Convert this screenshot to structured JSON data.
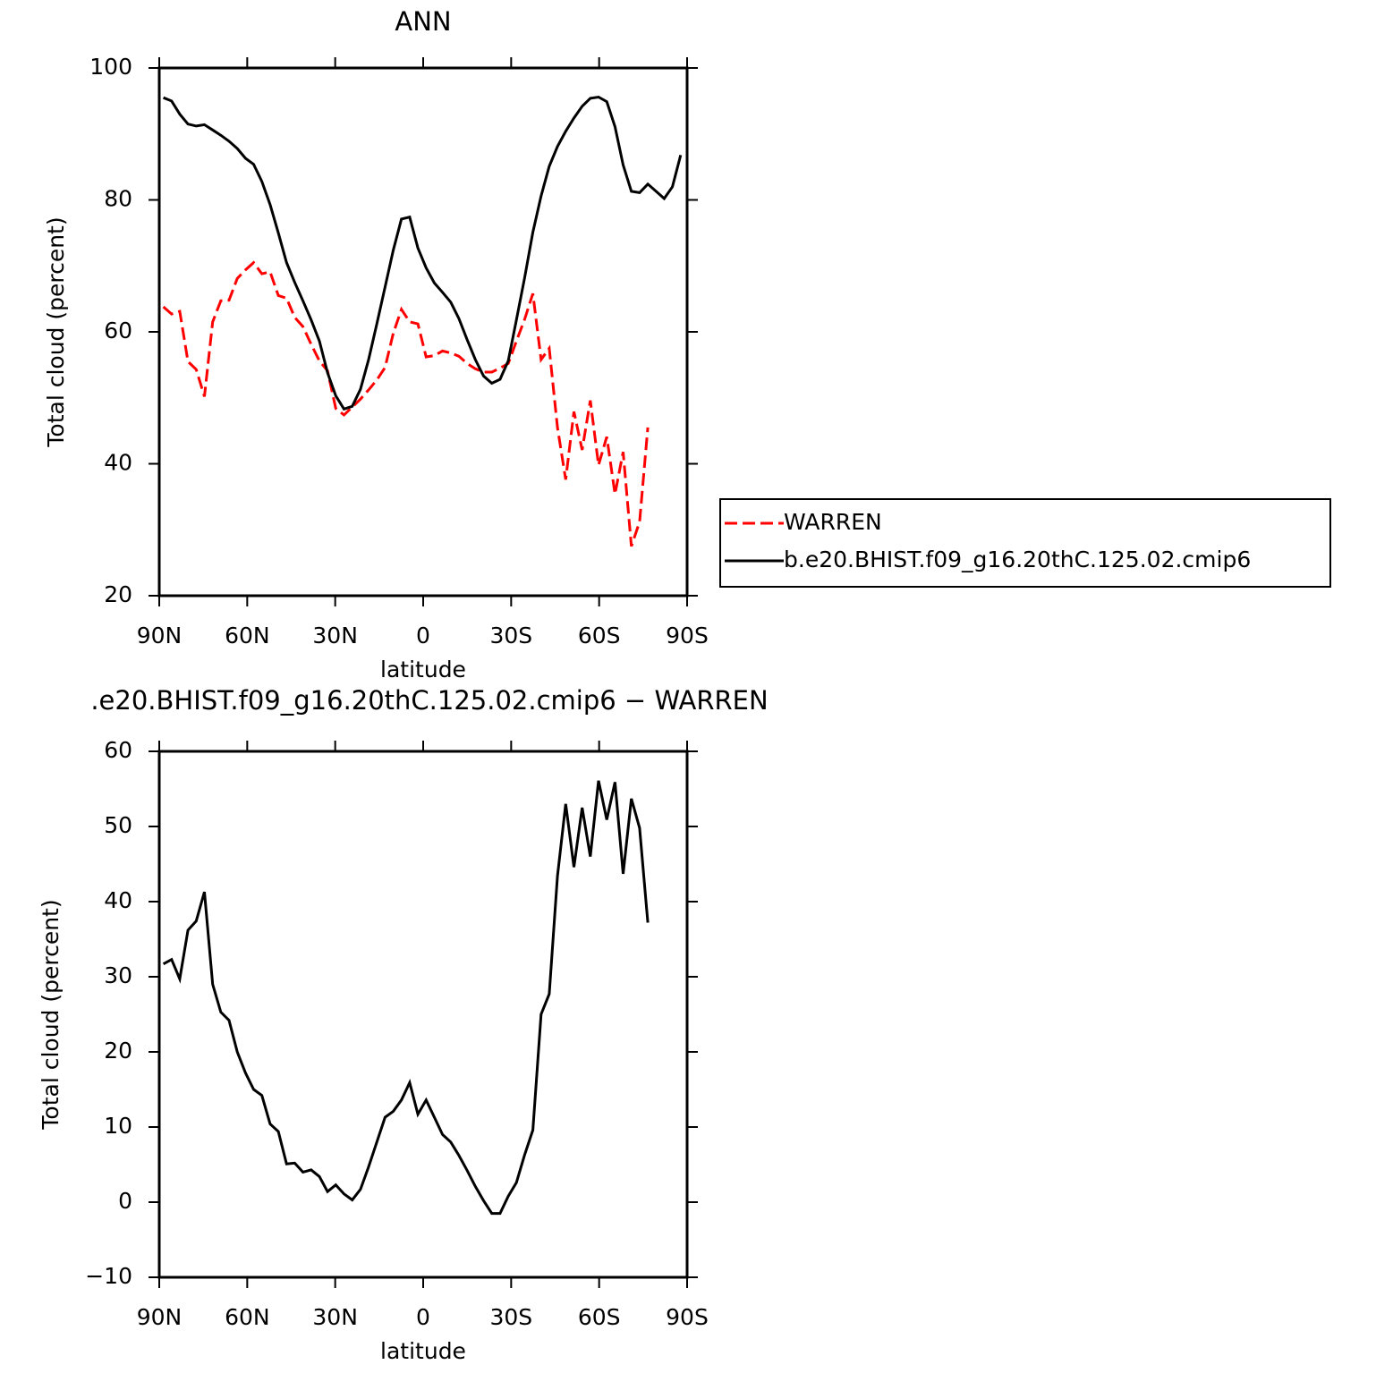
{
  "chart_data": [
    {
      "type": "line",
      "title": "ANN",
      "xlabel": "latitude",
      "ylabel": "Total cloud (percent)",
      "x": [
        88.6,
        85.8,
        83.0,
        80.2,
        77.4,
        74.6,
        71.8,
        69.0,
        66.2,
        63.4,
        60.6,
        57.8,
        55.0,
        52.2,
        49.4,
        46.6,
        43.8,
        41.0,
        38.2,
        35.4,
        32.6,
        29.8,
        27.0,
        24.2,
        21.4,
        18.6,
        15.8,
        13.0,
        10.2,
        7.4,
        4.6,
        1.8,
        -1.0,
        -3.8,
        -6.6,
        -9.4,
        -12.2,
        -15.0,
        -17.8,
        -20.6,
        -23.4,
        -26.2,
        -29.0,
        -31.8,
        -34.6,
        -37.4,
        -40.2,
        -43.0,
        -45.8,
        -48.6,
        -51.4,
        -54.2,
        -57.0,
        -59.8,
        -62.6,
        -65.4,
        -68.2,
        -71.0,
        -73.8,
        -76.6,
        -79.4,
        -82.2,
        -85.0,
        -87.8
      ],
      "series": [
        {
          "name": "WARREN",
          "color": "#ff0000",
          "dashed": true,
          "values": [
            63.8,
            62.7,
            63.1,
            55.5,
            54.3,
            50.2,
            61.5,
            64.7,
            64.8,
            68.1,
            69.4,
            70.5,
            68.8,
            69.1,
            65.5,
            65.1,
            62.2,
            60.8,
            58.1,
            55.6,
            54.1,
            48.4,
            47.4,
            48.6,
            49.8,
            51.2,
            52.7,
            54.6,
            59.8,
            63.4,
            61.5,
            61.2,
            56.2,
            56.4,
            57.1,
            56.8,
            56.3,
            55.2,
            54.4,
            53.9,
            53.9,
            54.5,
            55.2,
            58.6,
            61.9,
            65.8,
            55.8,
            57.5,
            45.5,
            37.6,
            47.9,
            42.1,
            49.6,
            39.8,
            44.1,
            35.4,
            41.8,
            27.5,
            31.2,
            45.5,
            null,
            null,
            null,
            null
          ]
        },
        {
          "name": "b.e20.BHIST.f09_g16.20thC.125.02.cmip6",
          "color": "#000000",
          "dashed": false,
          "values": [
            95.5,
            95.0,
            93.0,
            91.5,
            91.2,
            91.4,
            90.6,
            89.8,
            88.9,
            87.8,
            86.3,
            85.4,
            82.8,
            79.3,
            75.0,
            70.5,
            67.5,
            64.7,
            61.8,
            58.6,
            53.8,
            50.3,
            48.3,
            48.7,
            51.3,
            55.8,
            61.2,
            66.8,
            72.4,
            77.1,
            77.4,
            72.7,
            69.7,
            67.4,
            66.0,
            64.5,
            62.0,
            58.8,
            55.8,
            53.3,
            52.2,
            52.8,
            55.6,
            61.8,
            68.2,
            75.1,
            80.6,
            85.1,
            88.1,
            90.4,
            92.4,
            94.2,
            95.4,
            95.6,
            94.9,
            91.1,
            85.3,
            81.3,
            81.1,
            82.4,
            81.3,
            80.2,
            82.0,
            86.8
          ]
        }
      ],
      "xlim": [
        90,
        -90
      ],
      "xticks": [
        {
          "value": 90,
          "label": "90N"
        },
        {
          "value": 60,
          "label": "60N"
        },
        {
          "value": 30,
          "label": "30N"
        },
        0,
        {
          "value": -30,
          "label": "30S"
        },
        {
          "value": -60,
          "label": "60S"
        },
        {
          "value": -90,
          "label": "90S"
        }
      ],
      "ylim": [
        20,
        100
      ],
      "yticks": [
        20,
        40,
        60,
        80,
        100
      ]
    },
    {
      "type": "line",
      "title": ".e20.BHIST.f09_g16.20thC.125.02.cmip6 − WARREN",
      "xlabel": "latitude",
      "ylabel": "Total cloud (percent)",
      "x": [
        88.6,
        85.8,
        83.0,
        80.2,
        77.4,
        74.6,
        71.8,
        69.0,
        66.2,
        63.4,
        60.6,
        57.8,
        55.0,
        52.2,
        49.4,
        46.6,
        43.8,
        41.0,
        38.2,
        35.4,
        32.6,
        29.8,
        27.0,
        24.2,
        21.4,
        18.6,
        15.8,
        13.0,
        10.2,
        7.4,
        4.6,
        1.8,
        -1.0,
        -3.8,
        -6.6,
        -9.4,
        -12.2,
        -15.0,
        -17.8,
        -20.6,
        -23.4,
        -26.2,
        -29.0,
        -31.8,
        -34.6,
        -37.4,
        -40.2,
        -43.0,
        -45.8,
        -48.6,
        -51.4,
        -54.2,
        -57.0,
        -59.8,
        -62.6,
        -65.4,
        -68.2,
        -71.0,
        -73.8,
        -76.6
      ],
      "color": "#000000",
      "values": [
        31.7,
        32.3,
        29.7,
        36.2,
        37.4,
        41.3,
        29.0,
        25.3,
        24.2,
        20.0,
        17.2,
        15.0,
        14.2,
        10.4,
        9.4,
        5.1,
        5.2,
        4.0,
        4.3,
        3.4,
        1.4,
        2.3,
        1.1,
        0.3,
        1.7,
        4.7,
        8.0,
        11.3,
        12.1,
        13.6,
        15.9,
        11.7,
        13.6,
        11.3,
        9.0,
        8.0,
        6.2,
        4.2,
        2.1,
        0.2,
        -1.5,
        -1.5,
        0.8,
        2.6,
        6.3,
        9.6,
        25.0,
        27.7,
        43.4,
        53.0,
        44.6,
        52.5,
        46.0,
        56.1,
        50.9,
        55.9,
        43.7,
        53.7,
        49.8,
        37.2
      ],
      "xlim": [
        90,
        -90
      ],
      "xticks": [
        {
          "value": 90,
          "label": "90N"
        },
        {
          "value": 60,
          "label": "60N"
        },
        {
          "value": 30,
          "label": "30N"
        },
        0,
        {
          "value": -30,
          "label": "30S"
        },
        {
          "value": -60,
          "label": "60S"
        },
        {
          "value": -90,
          "label": "90S"
        }
      ],
      "ylim": [
        -10,
        60
      ],
      "yticks": [
        {
          "value": -10,
          "label": "−10"
        },
        0,
        10,
        20,
        30,
        40,
        50,
        60
      ]
    }
  ]
}
